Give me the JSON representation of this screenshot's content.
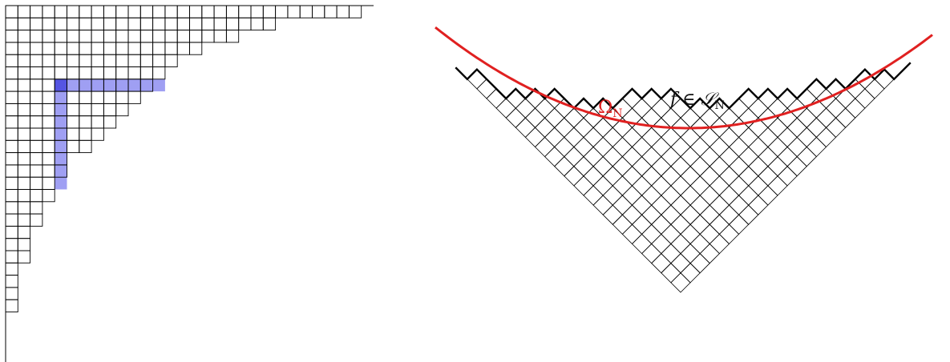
{
  "left_panel": {
    "name": "young-diagram",
    "row_lengths": [
      29,
      22,
      19,
      16,
      14,
      13,
      12,
      11,
      10,
      9,
      8,
      7,
      5,
      5,
      4,
      4,
      3,
      3,
      2,
      2,
      2,
      1,
      1,
      1,
      1
    ],
    "hook": {
      "corner_row": 6,
      "corner_col": 4,
      "arm_length": 8,
      "leg_length": 8
    },
    "colors": {
      "grid": "#000000",
      "hook_fill": "#9f9ff3",
      "corner_fill": "#5555e2"
    }
  },
  "right_panel": {
    "name": "rotated-diagram",
    "labels": {
      "limit_shape": "Ω",
      "limit_shape_sub": "N",
      "profile": "f ∈ 𝒮",
      "profile_sub": "N"
    },
    "colors": {
      "grid": "#000000",
      "limit_curve": "#e02020",
      "profile_line": "#000000"
    }
  }
}
